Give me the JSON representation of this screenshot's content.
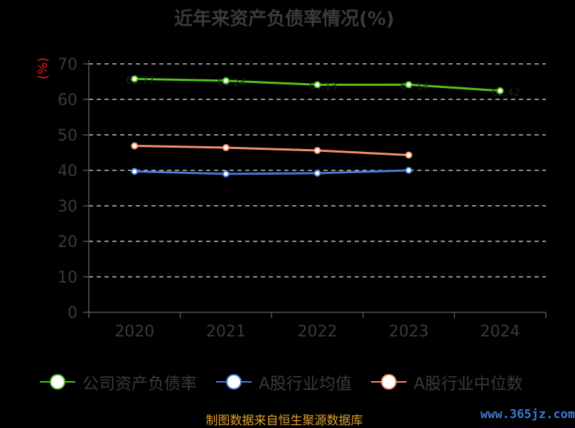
{
  "chart_data": {
    "type": "line",
    "title": "近年来资产负债率情况(%)",
    "ylabel": "(%)",
    "xlabel": "",
    "categories": [
      "2020",
      "2021",
      "2022",
      "2023",
      "2024"
    ],
    "ylim": [
      0,
      70
    ],
    "yticks": [
      0,
      10,
      20,
      30,
      40,
      50,
      60,
      70
    ],
    "grid": true,
    "legend_position": "bottom",
    "series": [
      {
        "name": "公司资产负债率",
        "color": "#52c41a",
        "values": [
          65.77,
          65.24,
          64.13,
          64.14,
          62.42
        ]
      },
      {
        "name": "A股行业均值",
        "color": "#4b7bd8",
        "values": [
          39.7,
          39.0,
          39.2,
          40.0,
          null
        ]
      },
      {
        "name": "A股行业中位数",
        "color": "#f4916a",
        "values": [
          46.9,
          46.4,
          45.6,
          44.3,
          null
        ]
      }
    ]
  },
  "footer": "制图数据来自恒生聚源数据库",
  "watermark": "www.365jz.com"
}
